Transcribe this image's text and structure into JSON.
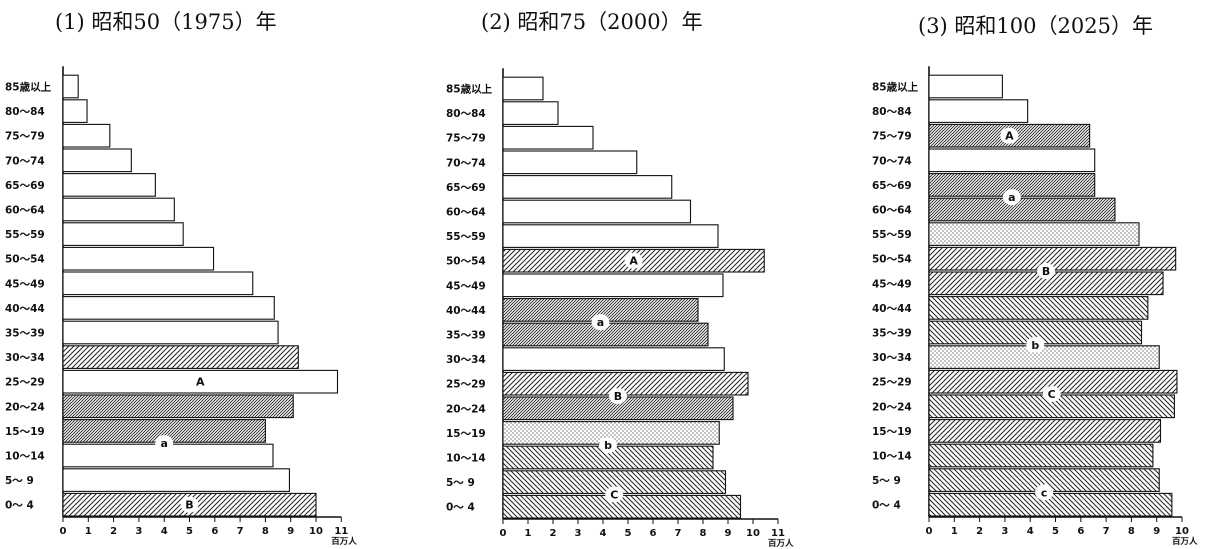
{
  "age_groups": [
    "0～ 4",
    "5～ 9",
    "10～14",
    "15～19",
    "20～24",
    "25～29",
    "30～34",
    "35～39",
    "40～44",
    "45～49",
    "50～54",
    "55～59",
    "60～64",
    "65～69",
    "70～74",
    "75～79",
    "80～84",
    "85歳以上"
  ],
  "unit_label": "百万人",
  "chart_data": [
    {
      "type": "bar",
      "orientation": "horizontal",
      "title": "(1)  昭和50（1975）年",
      "xlim": [
        0,
        11
      ],
      "xticks": [
        "0",
        "1",
        "2",
        "3",
        "4",
        "5",
        "6",
        "7",
        "8",
        "9",
        "10",
        "11"
      ],
      "unit": "百万人",
      "categories": [
        "0～ 4",
        "5～ 9",
        "10～14",
        "15～19",
        "20～24",
        "25～29",
        "30～34",
        "35～39",
        "40～44",
        "45～49",
        "50～54",
        "55～59",
        "60～64",
        "65～69",
        "70～74",
        "75～79",
        "80～84",
        "85歳以上"
      ],
      "values": [
        10.0,
        8.95,
        8.3,
        8.0,
        9.1,
        10.85,
        9.3,
        8.5,
        8.35,
        7.5,
        5.95,
        4.75,
        4.4,
        3.65,
        2.7,
        1.85,
        0.95,
        0.6
      ],
      "annotations": [
        {
          "label": "A",
          "rows": [
            5
          ]
        },
        {
          "label": "a",
          "rows": [
            3,
            2
          ]
        },
        {
          "label": "B",
          "rows": [
            0
          ]
        }
      ]
    },
    {
      "type": "bar",
      "orientation": "horizontal",
      "title": "(2)  昭和75（2000）年",
      "xlim": [
        0,
        11
      ],
      "xticks": [
        "0",
        "1",
        "2",
        "3",
        "4",
        "5",
        "6",
        "7",
        "8",
        "9",
        "10",
        "11"
      ],
      "unit": "百万人",
      "categories": [
        "0～ 4",
        "5～ 9",
        "10～14",
        "15～19",
        "20～24",
        "25～29",
        "30～34",
        "35～39",
        "40～44",
        "45～49",
        "50～54",
        "55～59",
        "60～64",
        "65～69",
        "70～74",
        "75～79",
        "80～84",
        "85歳以上"
      ],
      "values": [
        9.5,
        8.9,
        8.4,
        8.65,
        9.2,
        9.8,
        8.85,
        8.2,
        7.8,
        8.8,
        10.45,
        8.6,
        7.5,
        6.75,
        5.35,
        3.6,
        2.2,
        1.6
      ],
      "annotations": [
        {
          "label": "A",
          "rows": [
            10
          ]
        },
        {
          "label": "a",
          "rows": [
            8,
            7
          ]
        },
        {
          "label": "B",
          "rows": [
            5,
            4
          ]
        },
        {
          "label": "b",
          "rows": [
            3,
            2
          ]
        },
        {
          "label": "C",
          "rows": [
            1,
            0
          ]
        }
      ]
    },
    {
      "type": "bar",
      "orientation": "horizontal",
      "title": "(3)  昭和100（2025）年",
      "xlim": [
        0,
        10
      ],
      "xticks": [
        "0",
        "1",
        "2",
        "3",
        "4",
        "5",
        "6",
        "7",
        "8",
        "9",
        "10"
      ],
      "unit": "百万人",
      "categories": [
        "0～ 4",
        "5～ 9",
        "10～14",
        "15～19",
        "20～24",
        "25～29",
        "30～34",
        "35～39",
        "40～44",
        "45～49",
        "50～54",
        "55～59",
        "60～64",
        "65～69",
        "70～74",
        "75～79",
        "80～84",
        "85歳以上"
      ],
      "values": [
        9.6,
        9.1,
        8.85,
        9.15,
        9.7,
        9.8,
        9.1,
        8.4,
        8.65,
        9.25,
        9.75,
        8.3,
        7.35,
        6.55,
        6.55,
        6.35,
        3.9,
        2.9
      ],
      "annotations": [
        {
          "label": "A",
          "rows": [
            15
          ]
        },
        {
          "label": "a",
          "rows": [
            13,
            12
          ]
        },
        {
          "label": "B",
          "rows": [
            10,
            9
          ]
        },
        {
          "label": "b",
          "rows": [
            7,
            6
          ]
        },
        {
          "label": "C",
          "rows": [
            5,
            4
          ]
        },
        {
          "label": "c",
          "rows": [
            1,
            0
          ]
        }
      ]
    }
  ]
}
